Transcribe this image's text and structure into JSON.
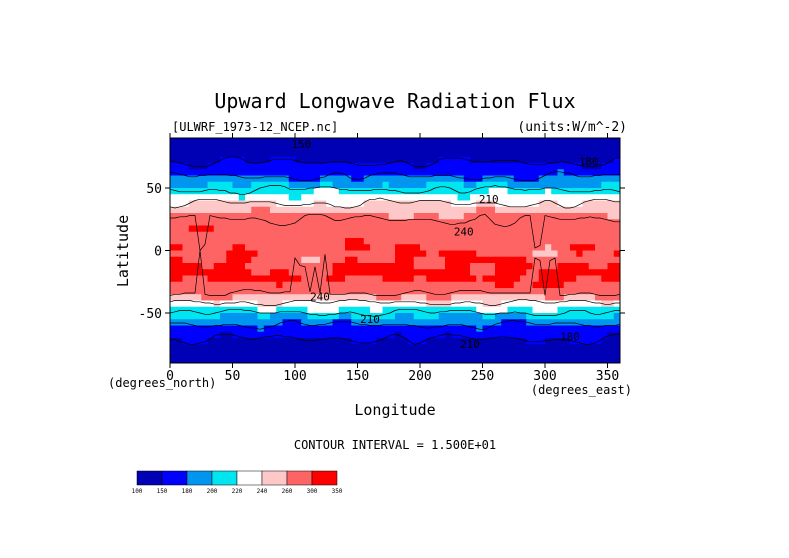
{
  "chart_data": {
    "type": "heatmap",
    "title": "Upward Longwave Radiation Flux",
    "source_label": "[ULWRF_1973-12_NCEP.nc]",
    "units_label": "(units:W/m^-2)",
    "xlabel": "Longitude",
    "ylabel": "Latitude",
    "x_unit_label": "(degrees_east)",
    "y_unit_label": "(degrees_north)",
    "xlim": [
      0,
      360
    ],
    "ylim": [
      -90,
      90
    ],
    "x_ticks": [
      0,
      50,
      100,
      150,
      200,
      250,
      300,
      350
    ],
    "y_ticks": [
      50,
      0,
      -50
    ],
    "contour_interval_text": "CONTOUR INTERVAL = 1.500E+01",
    "contour_labels": [
      "150",
      "180",
      "210",
      "240"
    ],
    "colorbar": {
      "ticks": [
        "100",
        "150",
        "180",
        "200",
        "220",
        "240",
        "260",
        "300",
        "350"
      ],
      "colors": [
        "#0000b4",
        "#0000ff",
        "#0096f0",
        "#00e6f0",
        "#ffffff",
        "#ffc8c8",
        "#ff6464",
        "#ff0000"
      ]
    }
  }
}
